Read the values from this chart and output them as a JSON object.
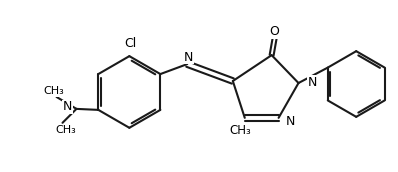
{
  "bg_color": "#ffffff",
  "line_color": "#1a1a1a",
  "line_width": 1.5,
  "figsize": [
    3.98,
    1.72
  ],
  "dpi": 100,
  "xlim": [
    0.0,
    4.0
  ],
  "ylim": [
    -0.05,
    1.25
  ]
}
